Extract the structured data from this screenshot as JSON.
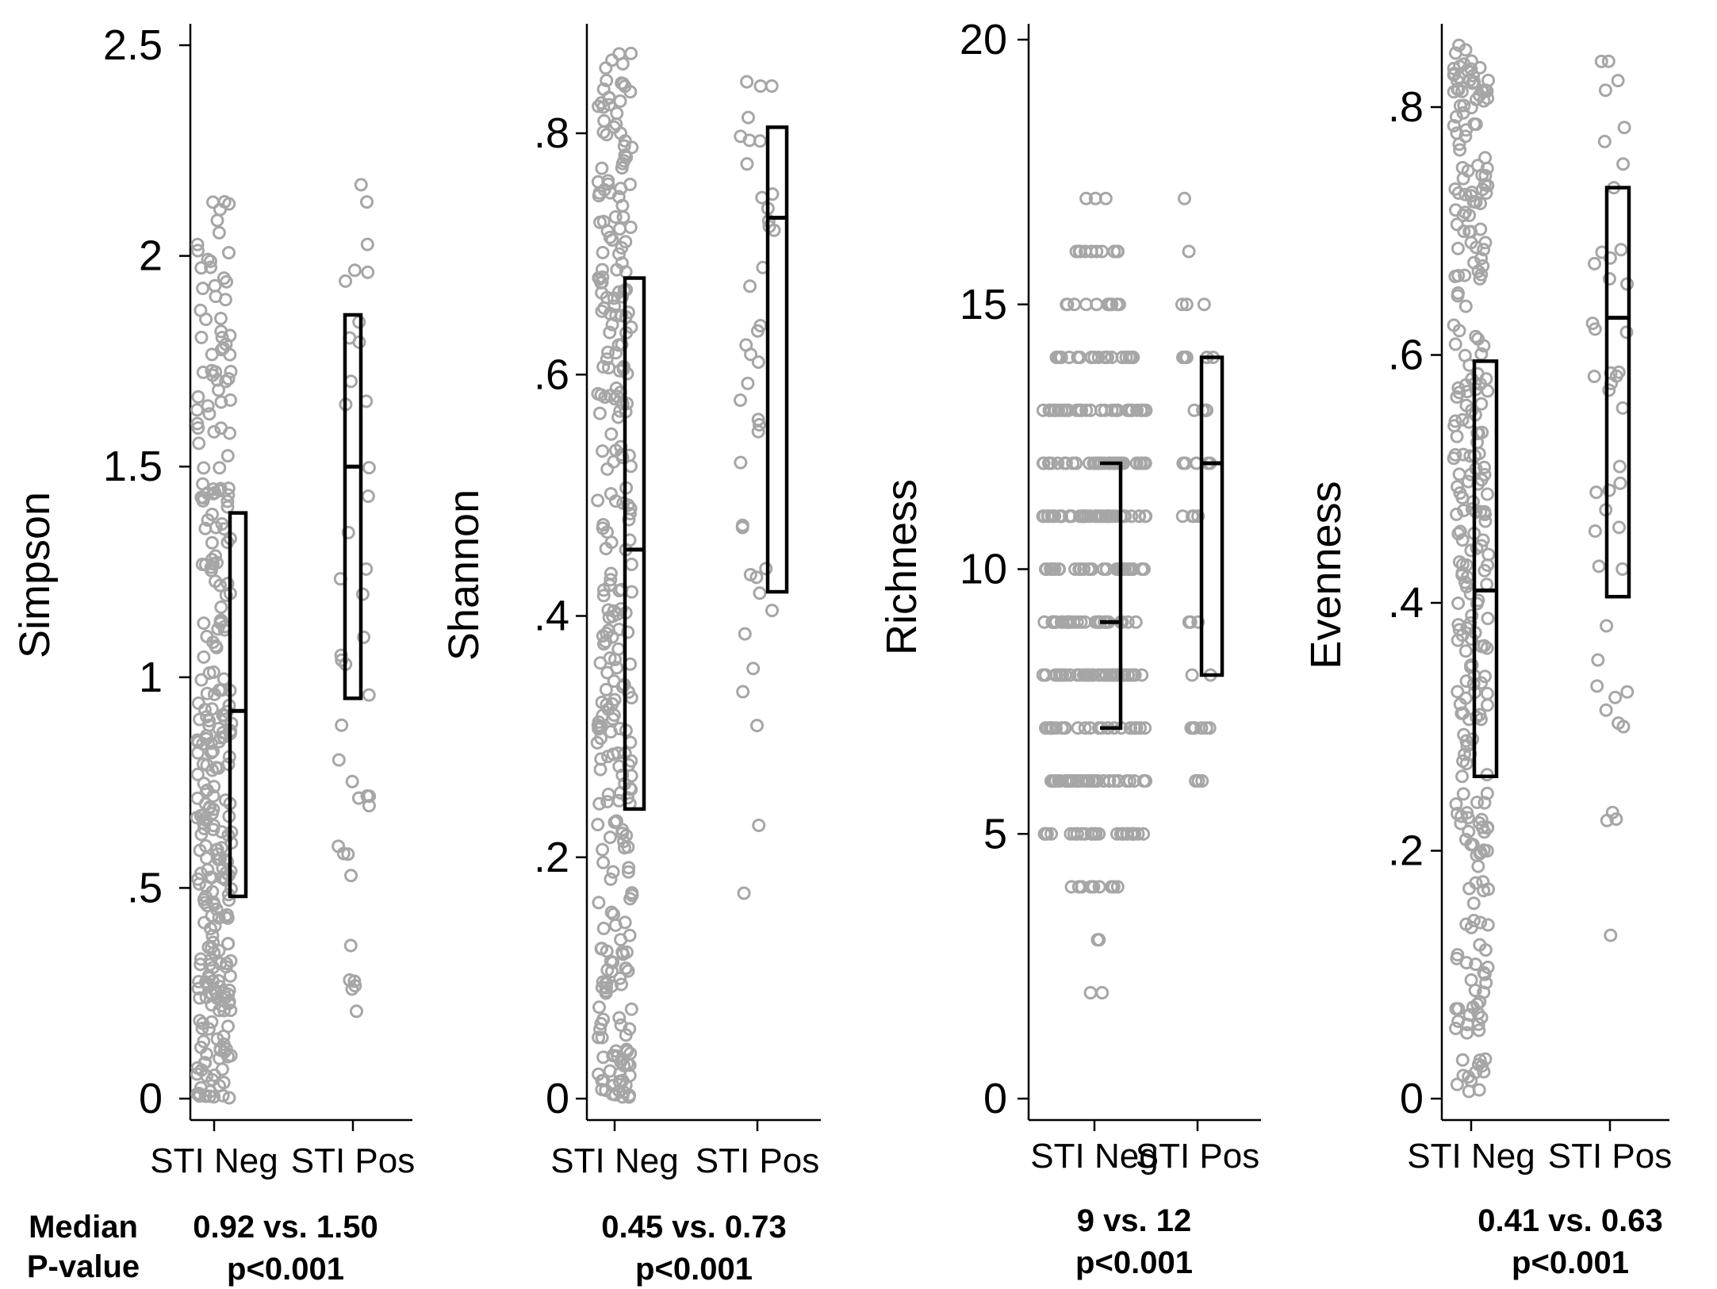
{
  "row_labels": {
    "median": "Median",
    "pvalue": "P-value"
  },
  "chart_data": [
    {
      "type": "scatter",
      "title": "",
      "ylabel": "Simpson",
      "ylim": [
        0,
        2.55
      ],
      "yticks": [
        0,
        0.5,
        1,
        1.5,
        2,
        2.5
      ],
      "ytick_labels": [
        "0",
        ".5",
        "1",
        "1.5",
        "2",
        "2.5"
      ],
      "categories": [
        "STI Neg",
        "STI Pos"
      ],
      "box": [
        {
          "group": "STI Neg",
          "q1": 0.48,
          "median": 0.92,
          "q3": 1.39
        },
        {
          "group": "STI Pos",
          "q1": 0.95,
          "median": 1.5,
          "q3": 1.86
        }
      ],
      "stats": {
        "median": "0.92 vs. 1.50",
        "pvalue": "p<0.001"
      }
    },
    {
      "type": "scatter",
      "title": "",
      "ylabel": "Shannon",
      "ylim": [
        0,
        0.9
      ],
      "yticks": [
        0,
        0.2,
        0.4,
        0.6,
        0.8
      ],
      "ytick_labels": [
        "0",
        ".2",
        ".4",
        ".6",
        ".8"
      ],
      "categories": [
        "STI Neg",
        "STI Pos"
      ],
      "box": [
        {
          "group": "STI Neg",
          "q1": 0.24,
          "median": 0.455,
          "q3": 0.68
        },
        {
          "group": "STI Pos",
          "q1": 0.42,
          "median": 0.73,
          "q3": 0.805
        }
      ],
      "stats": {
        "median": "0.45 vs. 0.73",
        "pvalue": "p<0.001"
      }
    },
    {
      "type": "scatter",
      "title": "",
      "ylabel": "Richness",
      "ylim": [
        0,
        20.3
      ],
      "yticks": [
        0,
        5,
        10,
        15,
        20
      ],
      "ytick_labels": [
        "0",
        "5",
        "10",
        "15",
        "20"
      ],
      "categories": [
        "STI Neg",
        "STI Pos"
      ],
      "box": [
        {
          "group": "STI Neg",
          "q1": 7,
          "median": 9,
          "q3": 12
        },
        {
          "group": "STI Pos",
          "q1": 8,
          "median": 12,
          "q3": 14
        }
      ],
      "stats": {
        "median": "9 vs. 12",
        "pvalue": "p<0.001"
      }
    },
    {
      "type": "scatter",
      "title": "",
      "ylabel": "Evenness",
      "ylim": [
        0,
        0.87
      ],
      "yticks": [
        0,
        0.2,
        0.4,
        0.6,
        0.8
      ],
      "ytick_labels": [
        "0",
        ".2",
        ".4",
        ".6",
        ".8"
      ],
      "categories": [
        "STI Neg",
        "STI Pos"
      ],
      "box": [
        {
          "group": "STI Neg",
          "q1": 0.26,
          "median": 0.41,
          "q3": 0.595
        },
        {
          "group": "STI Pos",
          "q1": 0.405,
          "median": 0.63,
          "q3": 0.735
        }
      ],
      "stats": {
        "median": "0.41 vs. 0.63",
        "pvalue": "p<0.001"
      }
    }
  ]
}
